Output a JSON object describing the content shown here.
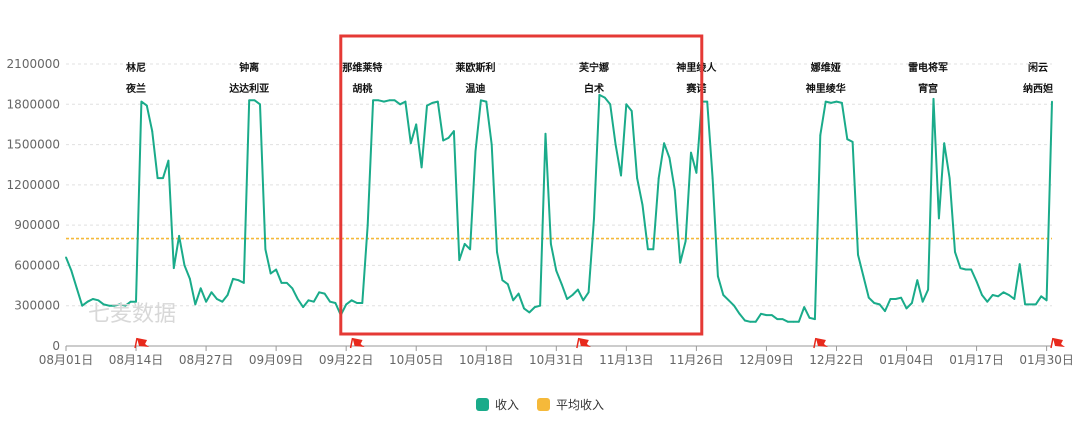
{
  "watermark": "七麦数据",
  "colors": {
    "income": "#1aab8a",
    "average": "#f5b93a",
    "flag": "#e8291c",
    "highlight_box": "#e53935",
    "grid": "#e0e0e0",
    "axis": "#999999"
  },
  "legend": [
    {
      "label": "收入",
      "color": "#1aab8a"
    },
    {
      "label": "平均收入",
      "color": "#f5b93a"
    }
  ],
  "chart_data": {
    "type": "line",
    "x_start": "2022-08-01",
    "x_end": "2023-01-31",
    "x_tick_labels": [
      "08月01日",
      "08月14日",
      "08月27日",
      "09月09日",
      "09月22日",
      "10月05日",
      "10月18日",
      "10月31日",
      "11月13日",
      "11月26日",
      "12月09日",
      "12月22日",
      "01月04日",
      "01月17日",
      "01月30日"
    ],
    "x_tick_dates": [
      "2022-08-01",
      "2022-08-14",
      "2022-08-27",
      "2022-09-09",
      "2022-09-22",
      "2022-10-05",
      "2022-10-18",
      "2022-10-31",
      "2022-11-13",
      "2022-11-26",
      "2022-12-09",
      "2022-12-22",
      "2023-01-04",
      "2023-01-17",
      "2023-01-30"
    ],
    "y_ticks": [
      0,
      300000,
      600000,
      900000,
      1200000,
      1500000,
      1800000,
      2100000
    ],
    "ylim": [
      0,
      2100000
    ],
    "grid": true,
    "legend_position": "bottom-center",
    "average": 800000,
    "series": [
      {
        "name": "收入",
        "points": [
          [
            "2022-08-01",
            660000
          ],
          [
            "2022-08-02",
            560000
          ],
          [
            "2022-08-03",
            430000
          ],
          [
            "2022-08-04",
            300000
          ],
          [
            "2022-08-05",
            330000
          ],
          [
            "2022-08-06",
            350000
          ],
          [
            "2022-08-07",
            340000
          ],
          [
            "2022-08-08",
            310000
          ],
          [
            "2022-08-09",
            300000
          ],
          [
            "2022-08-10",
            300000
          ],
          [
            "2022-08-11",
            310000
          ],
          [
            "2022-08-12",
            300000
          ],
          [
            "2022-08-13",
            330000
          ],
          [
            "2022-08-14",
            330000
          ],
          [
            "2022-08-15",
            1820000
          ],
          [
            "2022-08-16",
            1790000
          ],
          [
            "2022-08-17",
            1600000
          ],
          [
            "2022-08-18",
            1250000
          ],
          [
            "2022-08-19",
            1250000
          ],
          [
            "2022-08-20",
            1380000
          ],
          [
            "2022-08-21",
            580000
          ],
          [
            "2022-08-22",
            820000
          ],
          [
            "2022-08-23",
            600000
          ],
          [
            "2022-08-24",
            500000
          ],
          [
            "2022-08-25",
            310000
          ],
          [
            "2022-08-26",
            430000
          ],
          [
            "2022-08-27",
            330000
          ],
          [
            "2022-08-28",
            400000
          ],
          [
            "2022-08-29",
            350000
          ],
          [
            "2022-08-30",
            330000
          ],
          [
            "2022-08-31",
            380000
          ],
          [
            "2022-09-01",
            500000
          ],
          [
            "2022-09-02",
            490000
          ],
          [
            "2022-09-03",
            470000
          ],
          [
            "2022-09-04",
            1830000
          ],
          [
            "2022-09-05",
            1830000
          ],
          [
            "2022-09-06",
            1800000
          ],
          [
            "2022-09-07",
            720000
          ],
          [
            "2022-09-08",
            540000
          ],
          [
            "2022-09-09",
            570000
          ],
          [
            "2022-09-10",
            470000
          ],
          [
            "2022-09-11",
            470000
          ],
          [
            "2022-09-12",
            430000
          ],
          [
            "2022-09-13",
            350000
          ],
          [
            "2022-09-14",
            290000
          ],
          [
            "2022-09-15",
            340000
          ],
          [
            "2022-09-16",
            330000
          ],
          [
            "2022-09-17",
            400000
          ],
          [
            "2022-09-18",
            390000
          ],
          [
            "2022-09-19",
            330000
          ],
          [
            "2022-09-20",
            320000
          ],
          [
            "2022-09-21",
            230000
          ],
          [
            "2022-09-22",
            310000
          ],
          [
            "2022-09-23",
            340000
          ],
          [
            "2022-09-24",
            320000
          ],
          [
            "2022-09-25",
            320000
          ],
          [
            "2022-09-26",
            900000
          ],
          [
            "2022-09-27",
            1830000
          ],
          [
            "2022-09-28",
            1830000
          ],
          [
            "2022-09-29",
            1820000
          ],
          [
            "2022-09-30",
            1830000
          ],
          [
            "2022-10-01",
            1830000
          ],
          [
            "2022-10-02",
            1800000
          ],
          [
            "2022-10-03",
            1820000
          ],
          [
            "2022-10-04",
            1510000
          ],
          [
            "2022-10-05",
            1650000
          ],
          [
            "2022-10-06",
            1330000
          ],
          [
            "2022-10-07",
            1790000
          ],
          [
            "2022-10-08",
            1810000
          ],
          [
            "2022-10-09",
            1820000
          ],
          [
            "2022-10-10",
            1530000
          ],
          [
            "2022-10-11",
            1550000
          ],
          [
            "2022-10-12",
            1600000
          ],
          [
            "2022-10-13",
            640000
          ],
          [
            "2022-10-14",
            760000
          ],
          [
            "2022-10-15",
            720000
          ],
          [
            "2022-10-16",
            1450000
          ],
          [
            "2022-10-17",
            1830000
          ],
          [
            "2022-10-18",
            1820000
          ],
          [
            "2022-10-19",
            1500000
          ],
          [
            "2022-10-20",
            700000
          ],
          [
            "2022-10-21",
            490000
          ],
          [
            "2022-10-22",
            460000
          ],
          [
            "2022-10-23",
            340000
          ],
          [
            "2022-10-24",
            390000
          ],
          [
            "2022-10-25",
            280000
          ],
          [
            "2022-10-26",
            250000
          ],
          [
            "2022-10-27",
            290000
          ],
          [
            "2022-10-28",
            300000
          ],
          [
            "2022-10-29",
            1580000
          ],
          [
            "2022-10-30",
            760000
          ],
          [
            "2022-10-31",
            560000
          ],
          [
            "2022-11-01",
            460000
          ],
          [
            "2022-11-02",
            350000
          ],
          [
            "2022-11-03",
            380000
          ],
          [
            "2022-11-04",
            420000
          ],
          [
            "2022-11-05",
            340000
          ],
          [
            "2022-11-06",
            400000
          ],
          [
            "2022-11-07",
            950000
          ],
          [
            "2022-11-08",
            1870000
          ],
          [
            "2022-11-09",
            1850000
          ],
          [
            "2022-11-10",
            1800000
          ],
          [
            "2022-11-11",
            1500000
          ],
          [
            "2022-11-12",
            1270000
          ],
          [
            "2022-11-13",
            1800000
          ],
          [
            "2022-11-14",
            1750000
          ],
          [
            "2022-11-15",
            1250000
          ],
          [
            "2022-11-16",
            1050000
          ],
          [
            "2022-11-17",
            720000
          ],
          [
            "2022-11-18",
            720000
          ],
          [
            "2022-11-19",
            1250000
          ],
          [
            "2022-11-20",
            1510000
          ],
          [
            "2022-11-21",
            1400000
          ],
          [
            "2022-11-22",
            1160000
          ],
          [
            "2022-11-23",
            620000
          ],
          [
            "2022-11-24",
            780000
          ],
          [
            "2022-11-25",
            1440000
          ],
          [
            "2022-11-26",
            1290000
          ],
          [
            "2022-11-27",
            1820000
          ],
          [
            "2022-11-28",
            1820000
          ],
          [
            "2022-11-29",
            1250000
          ],
          [
            "2022-11-30",
            520000
          ],
          [
            "2022-12-01",
            380000
          ],
          [
            "2022-12-02",
            340000
          ],
          [
            "2022-12-03",
            300000
          ],
          [
            "2022-12-04",
            240000
          ],
          [
            "2022-12-05",
            190000
          ],
          [
            "2022-12-06",
            180000
          ],
          [
            "2022-12-07",
            180000
          ],
          [
            "2022-12-08",
            240000
          ],
          [
            "2022-12-09",
            230000
          ],
          [
            "2022-12-10",
            230000
          ],
          [
            "2022-12-11",
            200000
          ],
          [
            "2022-12-12",
            200000
          ],
          [
            "2022-12-13",
            180000
          ],
          [
            "2022-12-14",
            180000
          ],
          [
            "2022-12-15",
            180000
          ],
          [
            "2022-12-16",
            290000
          ],
          [
            "2022-12-17",
            210000
          ],
          [
            "2022-12-18",
            200000
          ],
          [
            "2022-12-19",
            1570000
          ],
          [
            "2022-12-20",
            1820000
          ],
          [
            "2022-12-21",
            1810000
          ],
          [
            "2022-12-22",
            1820000
          ],
          [
            "2022-12-23",
            1810000
          ],
          [
            "2022-12-24",
            1540000
          ],
          [
            "2022-12-25",
            1520000
          ],
          [
            "2022-12-26",
            680000
          ],
          [
            "2022-12-27",
            520000
          ],
          [
            "2022-12-28",
            360000
          ],
          [
            "2022-12-29",
            320000
          ],
          [
            "2022-12-30",
            310000
          ],
          [
            "2022-12-31",
            260000
          ],
          [
            "2023-01-01",
            350000
          ],
          [
            "2023-01-02",
            350000
          ],
          [
            "2023-01-03",
            360000
          ],
          [
            "2023-01-04",
            280000
          ],
          [
            "2023-01-05",
            320000
          ],
          [
            "2023-01-06",
            490000
          ],
          [
            "2023-01-07",
            330000
          ],
          [
            "2023-01-08",
            420000
          ],
          [
            "2023-01-09",
            1840000
          ],
          [
            "2023-01-10",
            950000
          ],
          [
            "2023-01-11",
            1510000
          ],
          [
            "2023-01-12",
            1250000
          ],
          [
            "2023-01-13",
            700000
          ],
          [
            "2023-01-14",
            580000
          ],
          [
            "2023-01-15",
            570000
          ],
          [
            "2023-01-16",
            570000
          ],
          [
            "2023-01-17",
            480000
          ],
          [
            "2023-01-18",
            380000
          ],
          [
            "2023-01-19",
            330000
          ],
          [
            "2023-01-20",
            380000
          ],
          [
            "2023-01-21",
            370000
          ],
          [
            "2023-01-22",
            400000
          ],
          [
            "2023-01-23",
            380000
          ],
          [
            "2023-01-24",
            350000
          ],
          [
            "2023-01-25",
            610000
          ],
          [
            "2023-01-26",
            310000
          ],
          [
            "2023-01-27",
            310000
          ],
          [
            "2023-01-28",
            310000
          ],
          [
            "2023-01-29",
            370000
          ],
          [
            "2023-01-30",
            340000
          ],
          [
            "2023-01-31",
            1820000
          ]
        ]
      }
    ],
    "annotations": [
      {
        "date": "2022-08-14",
        "lines": [
          "林尼",
          "夜兰"
        ]
      },
      {
        "date": "2022-09-04",
        "lines": [
          "钟离",
          "达达利亚"
        ]
      },
      {
        "date": "2022-09-25",
        "lines": [
          "那维莱特",
          "胡桃"
        ]
      },
      {
        "date": "2022-10-16",
        "lines": [
          "莱欧斯利",
          "温迪"
        ]
      },
      {
        "date": "2022-11-07",
        "lines": [
          "芙宁娜",
          "白术"
        ]
      },
      {
        "date": "2022-11-26",
        "lines": [
          "神里绫人",
          "赛诺"
        ]
      },
      {
        "date": "2022-12-20",
        "lines": [
          "娜维娅",
          "神里绫华"
        ]
      },
      {
        "date": "2023-01-08",
        "lines": [
          "雷电将军",
          "宵宫"
        ]
      },
      {
        "date": "2023-01-31",
        "lines": [
          "闲云",
          "纳西妲"
        ]
      }
    ],
    "flags": [
      "2022-08-14",
      "2022-09-23",
      "2022-11-04",
      "2022-12-18",
      "2023-01-31"
    ],
    "highlight_range": [
      "2022-09-21",
      "2022-11-27"
    ]
  }
}
